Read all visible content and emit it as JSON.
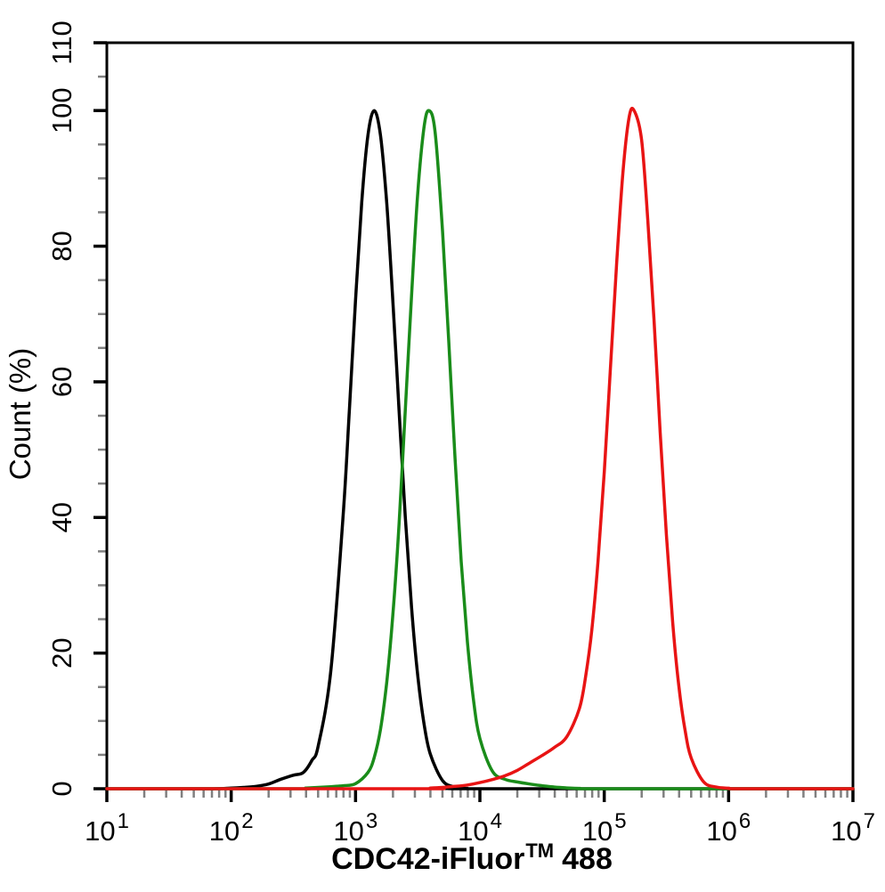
{
  "chart_data": {
    "type": "line",
    "subtype": "flow-cytometry-overlay-histogram",
    "title": "",
    "xlabel": "CDC42-iFluor™ 488",
    "xlabel_parts": {
      "pre": "CDC42-iFluor",
      "sup": "TM",
      "post": "488"
    },
    "ylabel": "Count  (%)",
    "x_scale": "log10",
    "x_tick_base": "10",
    "x_ticks_exponents": [
      1,
      2,
      3,
      4,
      5,
      6,
      7
    ],
    "xlim": [
      10,
      10000000
    ],
    "ylim": [
      0,
      110
    ],
    "y_major_ticks": [
      0,
      20,
      40,
      60,
      80,
      100,
      110
    ],
    "y_minor_step": 5,
    "grid": false,
    "legend": "none",
    "frame": "full-box",
    "axis_color": "#000000",
    "minor_tick_color": "#808080",
    "background_color": "#ffffff",
    "series": [
      {
        "name": "black (control)",
        "color": "#000000",
        "peak": {
          "x": 1400,
          "y": 100
        },
        "points_logx_count": [
          [
            1.0,
            0
          ],
          [
            1.8,
            0
          ],
          [
            2.0,
            0.1
          ],
          [
            2.1,
            0.2
          ],
          [
            2.2,
            0.35
          ],
          [
            2.3,
            0.7
          ],
          [
            2.4,
            1.4
          ],
          [
            2.5,
            2.0
          ],
          [
            2.58,
            2.4
          ],
          [
            2.65,
            4.2
          ],
          [
            2.7,
            6.3
          ],
          [
            2.8,
            17.2
          ],
          [
            2.9,
            40.3
          ],
          [
            2.95,
            55.8
          ],
          [
            3.0,
            72
          ],
          [
            3.05,
            86.5
          ],
          [
            3.1,
            96.4
          ],
          [
            3.15,
            100
          ],
          [
            3.2,
            96.4
          ],
          [
            3.25,
            86.5
          ],
          [
            3.3,
            72
          ],
          [
            3.35,
            55.8
          ],
          [
            3.4,
            40.1
          ],
          [
            3.45,
            26.8
          ],
          [
            3.5,
            16.7
          ],
          [
            3.55,
            9.7
          ],
          [
            3.6,
            5.2
          ],
          [
            3.7,
            1.2
          ],
          [
            3.8,
            0.25
          ],
          [
            3.9,
            0.05
          ],
          [
            4.0,
            0
          ],
          [
            7.0,
            0
          ]
        ]
      },
      {
        "name": "green",
        "color": "#1a8c1a",
        "peak": {
          "x": 3900,
          "y": 100
        },
        "points_logx_count": [
          [
            1.0,
            0
          ],
          [
            2.5,
            0
          ],
          [
            2.6,
            0.1
          ],
          [
            2.7,
            0.2
          ],
          [
            2.8,
            0.3
          ],
          [
            2.9,
            0.45
          ],
          [
            3.0,
            0.75
          ],
          [
            3.1,
            2.4
          ],
          [
            3.15,
            4.6
          ],
          [
            3.2,
            8.7
          ],
          [
            3.25,
            15.6
          ],
          [
            3.3,
            25.6
          ],
          [
            3.35,
            39
          ],
          [
            3.4,
            55.8
          ],
          [
            3.45,
            72.6
          ],
          [
            3.5,
            87.8
          ],
          [
            3.55,
            97.4
          ],
          [
            3.59,
            100
          ],
          [
            3.64,
            96.8
          ],
          [
            3.7,
            82.1
          ],
          [
            3.75,
            65.8
          ],
          [
            3.8,
            48.7
          ],
          [
            3.85,
            33.5
          ],
          [
            3.9,
            21.6
          ],
          [
            3.95,
            12.9
          ],
          [
            4.0,
            7.4
          ],
          [
            4.1,
            2.6
          ],
          [
            4.2,
            1.4
          ],
          [
            4.3,
            1.0
          ],
          [
            4.4,
            0.7
          ],
          [
            4.5,
            0.45
          ],
          [
            4.6,
            0.25
          ],
          [
            4.7,
            0.12
          ],
          [
            4.8,
            0.05
          ],
          [
            5.0,
            0
          ],
          [
            7.0,
            0
          ]
        ]
      },
      {
        "name": "red",
        "color": "#e81414",
        "peak": {
          "x": 170000,
          "y": 100
        },
        "points_logx_count": [
          [
            1.0,
            0
          ],
          [
            3.5,
            0
          ],
          [
            3.6,
            0.1
          ],
          [
            3.7,
            0.2
          ],
          [
            3.8,
            0.35
          ],
          [
            3.9,
            0.55
          ],
          [
            4.0,
            0.9
          ],
          [
            4.1,
            1.35
          ],
          [
            4.2,
            1.9
          ],
          [
            4.3,
            2.7
          ],
          [
            4.4,
            3.8
          ],
          [
            4.5,
            4.9
          ],
          [
            4.6,
            6.1
          ],
          [
            4.7,
            7.7
          ],
          [
            4.8,
            11.8
          ],
          [
            4.85,
            16.5
          ],
          [
            4.9,
            23.4
          ],
          [
            4.95,
            33.6
          ],
          [
            5.0,
            46.7
          ],
          [
            5.05,
            62
          ],
          [
            5.1,
            77.5
          ],
          [
            5.15,
            90.8
          ],
          [
            5.2,
            99
          ],
          [
            5.24,
            100
          ],
          [
            5.3,
            95.7
          ],
          [
            5.35,
            84
          ],
          [
            5.4,
            69.3
          ],
          [
            5.45,
            52.5
          ],
          [
            5.5,
            37.4
          ],
          [
            5.55,
            24.6
          ],
          [
            5.6,
            15.1
          ],
          [
            5.65,
            8.6
          ],
          [
            5.7,
            4.5
          ],
          [
            5.8,
            1.0
          ],
          [
            5.9,
            0.25
          ],
          [
            6.0,
            0.08
          ],
          [
            6.1,
            0
          ],
          [
            7.0,
            0
          ]
        ]
      }
    ]
  }
}
